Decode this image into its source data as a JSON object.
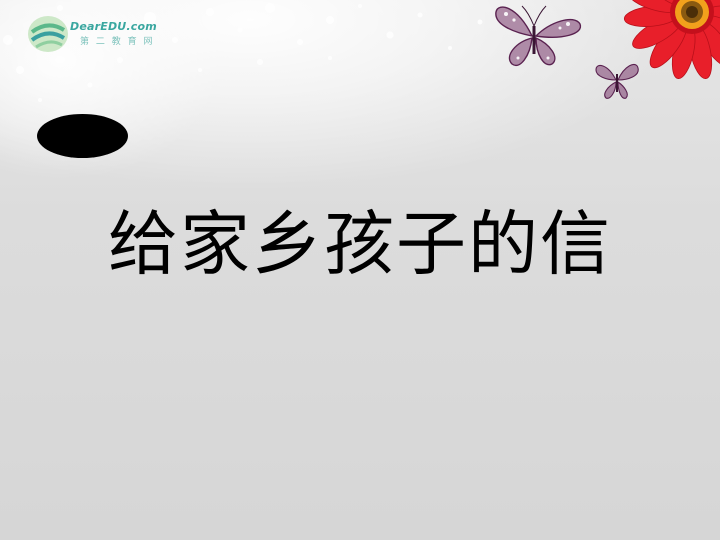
{
  "slide": {
    "title": "给家乡孩子的信",
    "logo": {
      "brand": "DearEDU.com",
      "tagline": "第 二 教 育 网"
    },
    "decorations": {
      "butterfly_icon": "butterfly-icon",
      "flower_icon": "red-gerbera-flower-icon",
      "blob_color": "#000000",
      "butterfly_color": "#6b2a5a",
      "flower_color": "#e81f2a",
      "flower_center_color": "#f2a11c"
    }
  }
}
